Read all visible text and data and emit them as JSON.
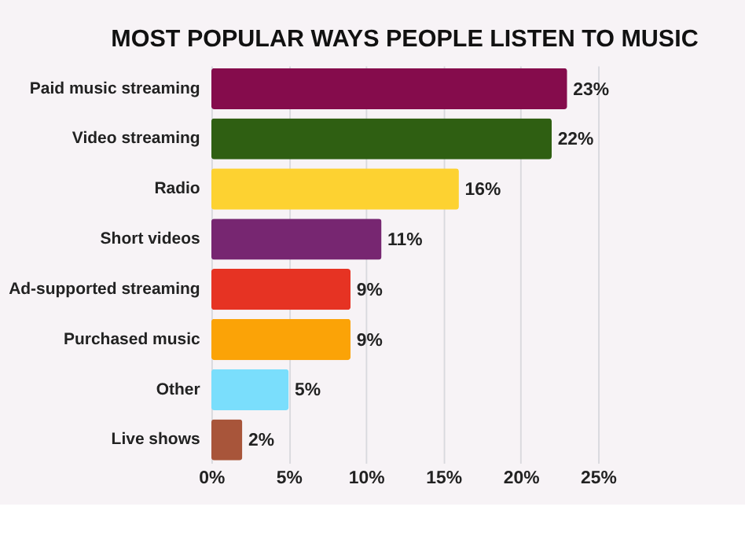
{
  "chart_data": {
    "type": "bar",
    "orientation": "horizontal",
    "title": "MOST POPULAR WAYS PEOPLE LISTEN TO MUSIC",
    "categories": [
      "Paid music streaming",
      "Video streaming",
      "Radio",
      "Short videos",
      "Ad-supported streaming",
      "Purchased music",
      "Other",
      "Live shows"
    ],
    "values": [
      23,
      22,
      16,
      11,
      9,
      9,
      5,
      2
    ],
    "colors": [
      "#850c4c",
      "#2f5f12",
      "#fdd231",
      "#772671",
      "#e63323",
      "#fba307",
      "#7adefc",
      "#a8553a"
    ],
    "value_labels": [
      "23%",
      "22%",
      "16%",
      "11%",
      "9%",
      "9%",
      "5%",
      "2%"
    ],
    "xlim": [
      0,
      25
    ],
    "xticks": [
      {
        "value": 0,
        "label": "0%"
      },
      {
        "value": 5,
        "label": "5%"
      },
      {
        "value": 10,
        "label": "10%"
      },
      {
        "value": 15,
        "label": "15%"
      },
      {
        "value": 20,
        "label": "20%"
      },
      {
        "value": 25,
        "label": "25%"
      }
    ],
    "grid": "x",
    "legend": false
  }
}
